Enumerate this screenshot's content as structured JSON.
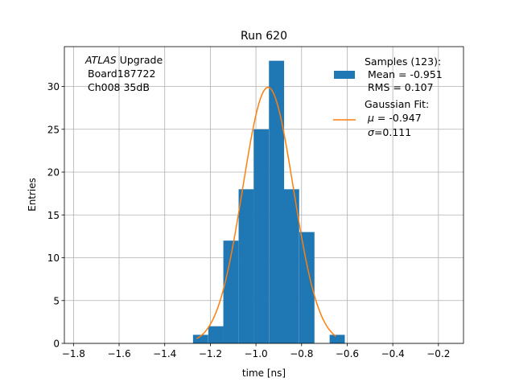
{
  "chart_data": {
    "type": "bar",
    "title": "Run 620",
    "xlabel": "time [ns]",
    "ylabel": "Entries",
    "xlim": [
      -1.84,
      -0.09
    ],
    "ylim": [
      0,
      34.65
    ],
    "xticks": [
      -1.8,
      -1.6,
      -1.4,
      -1.2,
      -1.0,
      -0.8,
      -0.6,
      -0.4,
      -0.2
    ],
    "xtick_labels": [
      "−1.8",
      "−1.6",
      "−1.4",
      "−1.2",
      "−1.0",
      "−0.8",
      "−0.6",
      "−0.4",
      "−0.2"
    ],
    "yticks": [
      0,
      5,
      10,
      15,
      20,
      25,
      30
    ],
    "ytick_labels": [
      "0",
      "5",
      "10",
      "15",
      "20",
      "25",
      "30"
    ],
    "grid": true,
    "annotation": {
      "italic": "ATLAS",
      "rest": " Upgrade",
      "line2": "Board187722",
      "line3": "Ch008 35dB"
    },
    "histogram": {
      "name": "Samples (123):",
      "color": "#1f77b4",
      "bin_width": 0.0665,
      "bins": [
        {
          "x0": -1.276,
          "count": 1
        },
        {
          "x0": -1.209,
          "count": 2
        },
        {
          "x0": -1.143,
          "count": 12
        },
        {
          "x0": -1.076,
          "count": 18
        },
        {
          "x0": -1.01,
          "count": 25
        },
        {
          "x0": -0.943,
          "count": 33
        },
        {
          "x0": -0.877,
          "count": 18
        },
        {
          "x0": -0.81,
          "count": 13
        },
        {
          "x0": -0.744,
          "count": 0
        },
        {
          "x0": -0.677,
          "count": 1
        }
      ]
    },
    "fit": {
      "name": "Gaussian Fit:",
      "color": "#ff7f0e",
      "mu": -0.947,
      "sigma": 0.111,
      "amplitude": 29.9,
      "x_range": [
        -1.26,
        -0.65
      ]
    },
    "legend": {
      "placement": "top-right",
      "samples_lines": [
        "Samples (123):",
        " Mean = -0.951",
        " RMS = 0.107"
      ],
      "fit_lines": [
        "Gaussian Fit:"
      ],
      "fit_mu_value": " = -0.947",
      "fit_sigma_value": "=0.111"
    }
  }
}
